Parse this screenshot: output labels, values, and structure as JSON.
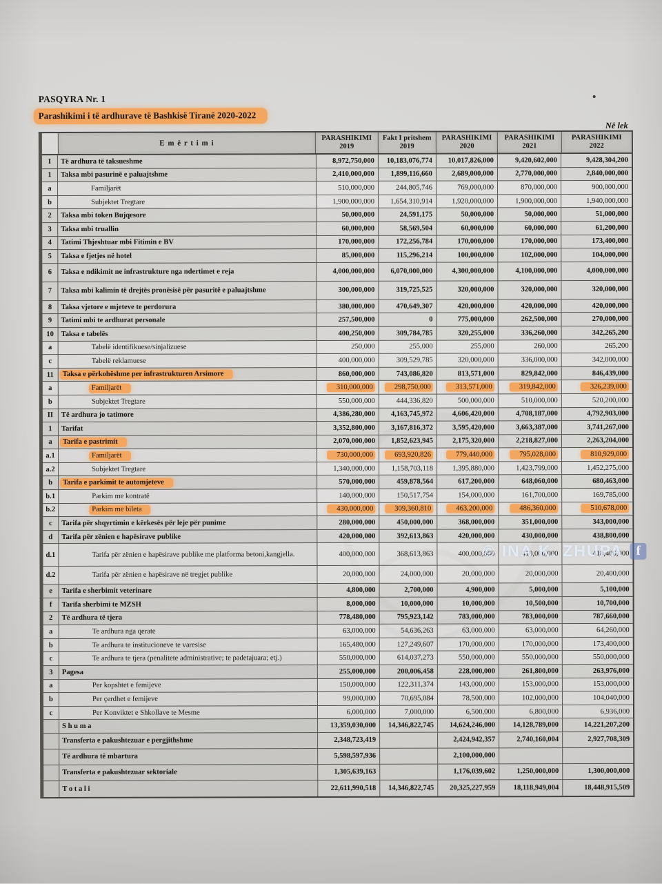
{
  "page": {
    "title1": "PASQYRA Nr. 1",
    "title2": "Parashikimi i të ardhurave të Bashkisë Tiranë 2020-2022",
    "unit_note": "Në lek"
  },
  "colors": {
    "highlight_marker": "#f2a660",
    "paper": "#d6d5d3",
    "ink": "#18150f"
  },
  "watermark": {
    "text": "© INA K. ZHUPA",
    "badge": "f"
  },
  "table": {
    "headers": {
      "emertimi": "E m ë r t i m i",
      "cols": [
        {
          "line1": "PARASHIKIMI",
          "line2": "2019"
        },
        {
          "line1": "Fakt I pritshem",
          "line2": "2019"
        },
        {
          "line1": "PARASHIKIMI",
          "line2": "2020"
        },
        {
          "line1": "PARASHIKIMI",
          "line2": "2021"
        },
        {
          "line1": "PARASHIKIMI",
          "line2": "2022"
        }
      ]
    },
    "rows": [
      {
        "no": "I",
        "name": "Të ardhura të taksueshme",
        "level": "section",
        "highlight": "none",
        "values": [
          "8,972,750,000",
          "10,183,076,774",
          "10,017,826,000",
          "9,420,602,000",
          "9,428,304,200"
        ]
      },
      {
        "no": "1",
        "name": "Taksa mbi pasurinë e paluajtshme",
        "level": "section",
        "highlight": "none",
        "values": [
          "2,410,000,000",
          "1,899,116,660",
          "2,689,000,000",
          "2,770,000,000",
          "2,840,000,000"
        ]
      },
      {
        "no": "a",
        "name": "Familjarët",
        "level": "item",
        "highlight": "none",
        "values": [
          "510,000,000",
          "244,805,746",
          "769,000,000",
          "870,000,000",
          "900,000,000"
        ]
      },
      {
        "no": "b",
        "name": "Subjektet Tregtare",
        "level": "item",
        "highlight": "none",
        "values": [
          "1,900,000,000",
          "1,654,310,914",
          "1,920,000,000",
          "1,900,000,000",
          "1,940,000,000"
        ]
      },
      {
        "no": "2",
        "name": "Taksa mbi token Bujqesore",
        "level": "section",
        "highlight": "none",
        "values": [
          "50,000,000",
          "24,591,175",
          "50,000,000",
          "50,000,000",
          "51,000,000"
        ]
      },
      {
        "no": "3",
        "name": "Taksa mbi truallin",
        "level": "section",
        "highlight": "none",
        "values": [
          "60,000,000",
          "58,569,504",
          "60,000,000",
          "60,000,000",
          "61,200,000"
        ]
      },
      {
        "no": "4",
        "name": "Tatimi Thjeshtuar mbi Fitimin e BV",
        "level": "section",
        "highlight": "none",
        "values": [
          "170,000,000",
          "172,256,784",
          "170,000,000",
          "170,000,000",
          "173,400,000"
        ]
      },
      {
        "no": "5",
        "name": "Taksa e fjetjes në hotel",
        "level": "section",
        "highlight": "none",
        "values": [
          "85,000,000",
          "115,296,214",
          "100,000,000",
          "102,000,000",
          "104,000,000"
        ]
      },
      {
        "no": "6",
        "name": "Taksa e ndikimit ne infrastrukture nga ndertimet e reja",
        "level": "section",
        "highlight": "none",
        "values": [
          "4,000,000,000",
          "6,070,000,000",
          "4,300,000,000",
          "4,100,000,000",
          "4,000,000,000"
        ]
      },
      {
        "no": "7",
        "name": "Taksa mbi kalimin të drejtës pronësisë për pasuritë e paluajtshme",
        "level": "section",
        "highlight": "none",
        "values": [
          "300,000,000",
          "319,725,525",
          "320,000,000",
          "320,000,000",
          "320,000,000"
        ]
      },
      {
        "no": "8",
        "name": "Taksa vjetore e mjeteve te perdorura",
        "level": "section",
        "highlight": "none",
        "values": [
          "380,000,000",
          "470,649,307",
          "420,000,000",
          "420,000,000",
          "420,000,000"
        ]
      },
      {
        "no": "9",
        "name": "Tatimi mbi te ardhurat personale",
        "level": "section",
        "highlight": "none",
        "values": [
          "257,500,000",
          "0",
          "775,000,000",
          "262,500,000",
          "270,000,000"
        ]
      },
      {
        "no": "10",
        "name": "Taksa e tabelës",
        "level": "section",
        "highlight": "none",
        "values": [
          "400,250,000",
          "309,784,785",
          "320,255,000",
          "336,260,000",
          "342,265,200"
        ]
      },
      {
        "no": "a",
        "name": "Tabelë identifikuese/sinjalizuese",
        "level": "item",
        "highlight": "none",
        "values": [
          "250,000",
          "255,000",
          "255,000",
          "260,000",
          "265,200"
        ]
      },
      {
        "no": "c",
        "name": "Tabelë reklamuese",
        "level": "item",
        "highlight": "none",
        "values": [
          "400,000,000",
          "309,529,785",
          "320,000,000",
          "336,000,000",
          "342,000,000"
        ]
      },
      {
        "no": "11",
        "name": "Taksa e përkohëshme per infrastrukturen Arsimore",
        "level": "section",
        "highlight": "label",
        "values": [
          "860,000,000",
          "743,086,820",
          "813,571,000",
          "829,842,000",
          "846,439,000"
        ]
      },
      {
        "no": "a",
        "name": "Familjarët",
        "level": "item",
        "highlight": "row",
        "values": [
          "310,000,000",
          "298,750,000",
          "313,571,000",
          "319,842,000",
          "326,239,000"
        ]
      },
      {
        "no": "b",
        "name": "Subjektet Tregtare",
        "level": "item",
        "highlight": "none",
        "values": [
          "550,000,000",
          "444,336,820",
          "500,000,000",
          "510,000,000",
          "520,200,000"
        ]
      },
      {
        "no": "II",
        "name": "Të ardhura jo tatimore",
        "level": "section",
        "highlight": "none",
        "values": [
          "4,386,280,000",
          "4,163,745,972",
          "4,606,420,000",
          "4,708,187,000",
          "4,792,903,000"
        ]
      },
      {
        "no": "1",
        "name": "Tarifat",
        "level": "section",
        "highlight": "none",
        "values": [
          "3,352,800,000",
          "3,167,816,372",
          "3,595,420,000",
          "3,663,387,000",
          "3,741,267,000"
        ]
      },
      {
        "no": "a",
        "name": "Tarifa e pastrimit",
        "level": "section",
        "highlight": "label",
        "values": [
          "2,070,000,000",
          "1,852,623,945",
          "2,175,320,000",
          "2,218,827,000",
          "2,263,204,000"
        ]
      },
      {
        "no": "a.1",
        "name": "Familjarët",
        "level": "item",
        "highlight": "row",
        "values": [
          "730,000,000",
          "693,920,826",
          "779,440,000",
          "795,028,000",
          "810,929,000"
        ]
      },
      {
        "no": "a.2",
        "name": "Subjektet Tregtare",
        "level": "item",
        "highlight": "none",
        "values": [
          "1,340,000,000",
          "1,158,703,118",
          "1,395,880,000",
          "1,423,799,000",
          "1,452,275,000"
        ]
      },
      {
        "no": "b",
        "name": "Tarifa e parkimit te automjeteve",
        "level": "section",
        "highlight": "label",
        "values": [
          "570,000,000",
          "459,878,564",
          "617,200,000",
          "648,060,000",
          "680,463,000"
        ]
      },
      {
        "no": "b.1",
        "name": "Parkim me kontratë",
        "level": "item",
        "highlight": "none",
        "values": [
          "140,000,000",
          "150,517,754",
          "154,000,000",
          "161,700,000",
          "169,785,000"
        ]
      },
      {
        "no": "b.2",
        "name": "Parkim me bileta",
        "level": "item",
        "highlight": "row",
        "values": [
          "430,000,000",
          "309,360,810",
          "463,200,000",
          "486,360,000",
          "510,678,000"
        ]
      },
      {
        "no": "c",
        "name": "Tarifa për shqyrtimin e kërkesës për leje për punime",
        "level": "section",
        "highlight": "none",
        "values": [
          "280,000,000",
          "450,000,000",
          "368,000,000",
          "351,000,000",
          "343,000,000"
        ]
      },
      {
        "no": "d",
        "name": "Tarifa për zënien e hapësirave publike",
        "level": "section",
        "highlight": "none",
        "values": [
          "420,000,000",
          "392,613,863",
          "420,000,000",
          "430,000,000",
          "438,800,000"
        ]
      },
      {
        "no": "d.1",
        "name": "Tarifa për zënien e hapësirave publike me platforma betoni,kangjella.",
        "level": "item",
        "highlight": "none",
        "values": [
          "400,000,000",
          "368,613,863",
          "400,000,000",
          "410,000,000",
          "418,400,000"
        ]
      },
      {
        "no": "d.2",
        "name": "Tarifa për zënien e hapësirave në tregjet publike",
        "level": "item",
        "highlight": "none",
        "values": [
          "20,000,000",
          "24,000,000",
          "20,000,000",
          "20,000,000",
          "20,400,000"
        ]
      },
      {
        "no": "e",
        "name": "Tarifa e sherbimit veterinare",
        "level": "section",
        "highlight": "none",
        "values": [
          "4,800,000",
          "2,700,000",
          "4,900,000",
          "5,000,000",
          "5,100,000"
        ]
      },
      {
        "no": "f",
        "name": "Tarifa sherbimi te MZSH",
        "level": "section",
        "highlight": "none",
        "values": [
          "8,000,000",
          "10,000,000",
          "10,000,000",
          "10,500,000",
          "10,700,000"
        ]
      },
      {
        "no": "2",
        "name": "Të ardhura të tjera",
        "level": "section",
        "highlight": "none",
        "values": [
          "778,480,000",
          "795,923,142",
          "783,000,000",
          "783,000,000",
          "787,660,000"
        ]
      },
      {
        "no": "a",
        "name": "Te ardhura nga qerate",
        "level": "item",
        "highlight": "none",
        "values": [
          "63,000,000",
          "54,636,263",
          "63,000,000",
          "63,000,000",
          "64,260,000"
        ]
      },
      {
        "no": "b",
        "name": "Te ardhura te institucioneve te varesise",
        "level": "item",
        "highlight": "none",
        "values": [
          "165,480,000",
          "127,249,607",
          "170,000,000",
          "170,000,000",
          "173,400,000"
        ]
      },
      {
        "no": "c",
        "name": "Te ardhura te tjera (penalitete administrative; te padetajuara; etj.)",
        "level": "item",
        "highlight": "none",
        "values": [
          "550,000,000",
          "614,037,273",
          "550,000,000",
          "550,000,000",
          "550,000,000"
        ]
      },
      {
        "no": "3",
        "name": "Pagesa",
        "level": "section",
        "highlight": "none",
        "values": [
          "255,000,000",
          "200,006,458",
          "228,000,000",
          "261,800,000",
          "263,976,000"
        ]
      },
      {
        "no": "a",
        "name": "Per kopshtet e femijeve",
        "level": "item",
        "highlight": "none",
        "values": [
          "150,000,000",
          "122,311,374",
          "143,000,000",
          "153,000,000",
          "153,000,000"
        ]
      },
      {
        "no": "b",
        "name": "Per çerdhet e femijeve",
        "level": "item",
        "highlight": "none",
        "values": [
          "99,000,000",
          "70,695,084",
          "78,500,000",
          "102,000,000",
          "104,040,000"
        ]
      },
      {
        "no": "c",
        "name": "Per Konviktet e Shkollave te Mesme",
        "level": "item",
        "highlight": "none",
        "values": [
          "6,000,000",
          "7,000,000",
          "6,500,000",
          "6,800,000",
          "6,936,000"
        ]
      },
      {
        "no": "",
        "name": "S h u m a",
        "level": "total",
        "highlight": "none",
        "values": [
          "13,359,030,000",
          "14,346,822,745",
          "14,624,246,000",
          "14,128,789,000",
          "14,221,207,200"
        ]
      },
      {
        "no": "",
        "name": "Transferta e pakushtezuar e pergjithshme",
        "level": "total",
        "highlight": "none",
        "values": [
          "2,348,723,419",
          "",
          "2,424,942,357",
          "2,740,160,004",
          "2,927,708,309"
        ]
      },
      {
        "no": "",
        "name": "Të ardhura të mbartura",
        "level": "total",
        "highlight": "none",
        "values": [
          "5,598,597,936",
          "",
          "2,100,000,000",
          "",
          ""
        ]
      },
      {
        "no": "",
        "name": "Transferta e pakushtezuar sektoriale",
        "level": "total",
        "highlight": "none",
        "values": [
          "1,305,639,163",
          "",
          "1,176,039,602",
          "1,250,000,000",
          "1,300,000,000"
        ]
      },
      {
        "no": "",
        "name": "T o t a l i",
        "level": "total",
        "highlight": "none",
        "values": [
          "22,611,990,518",
          "14,346,822,745",
          "20,325,227,959",
          "18,118,949,004",
          "18,448,915,509"
        ]
      }
    ]
  }
}
